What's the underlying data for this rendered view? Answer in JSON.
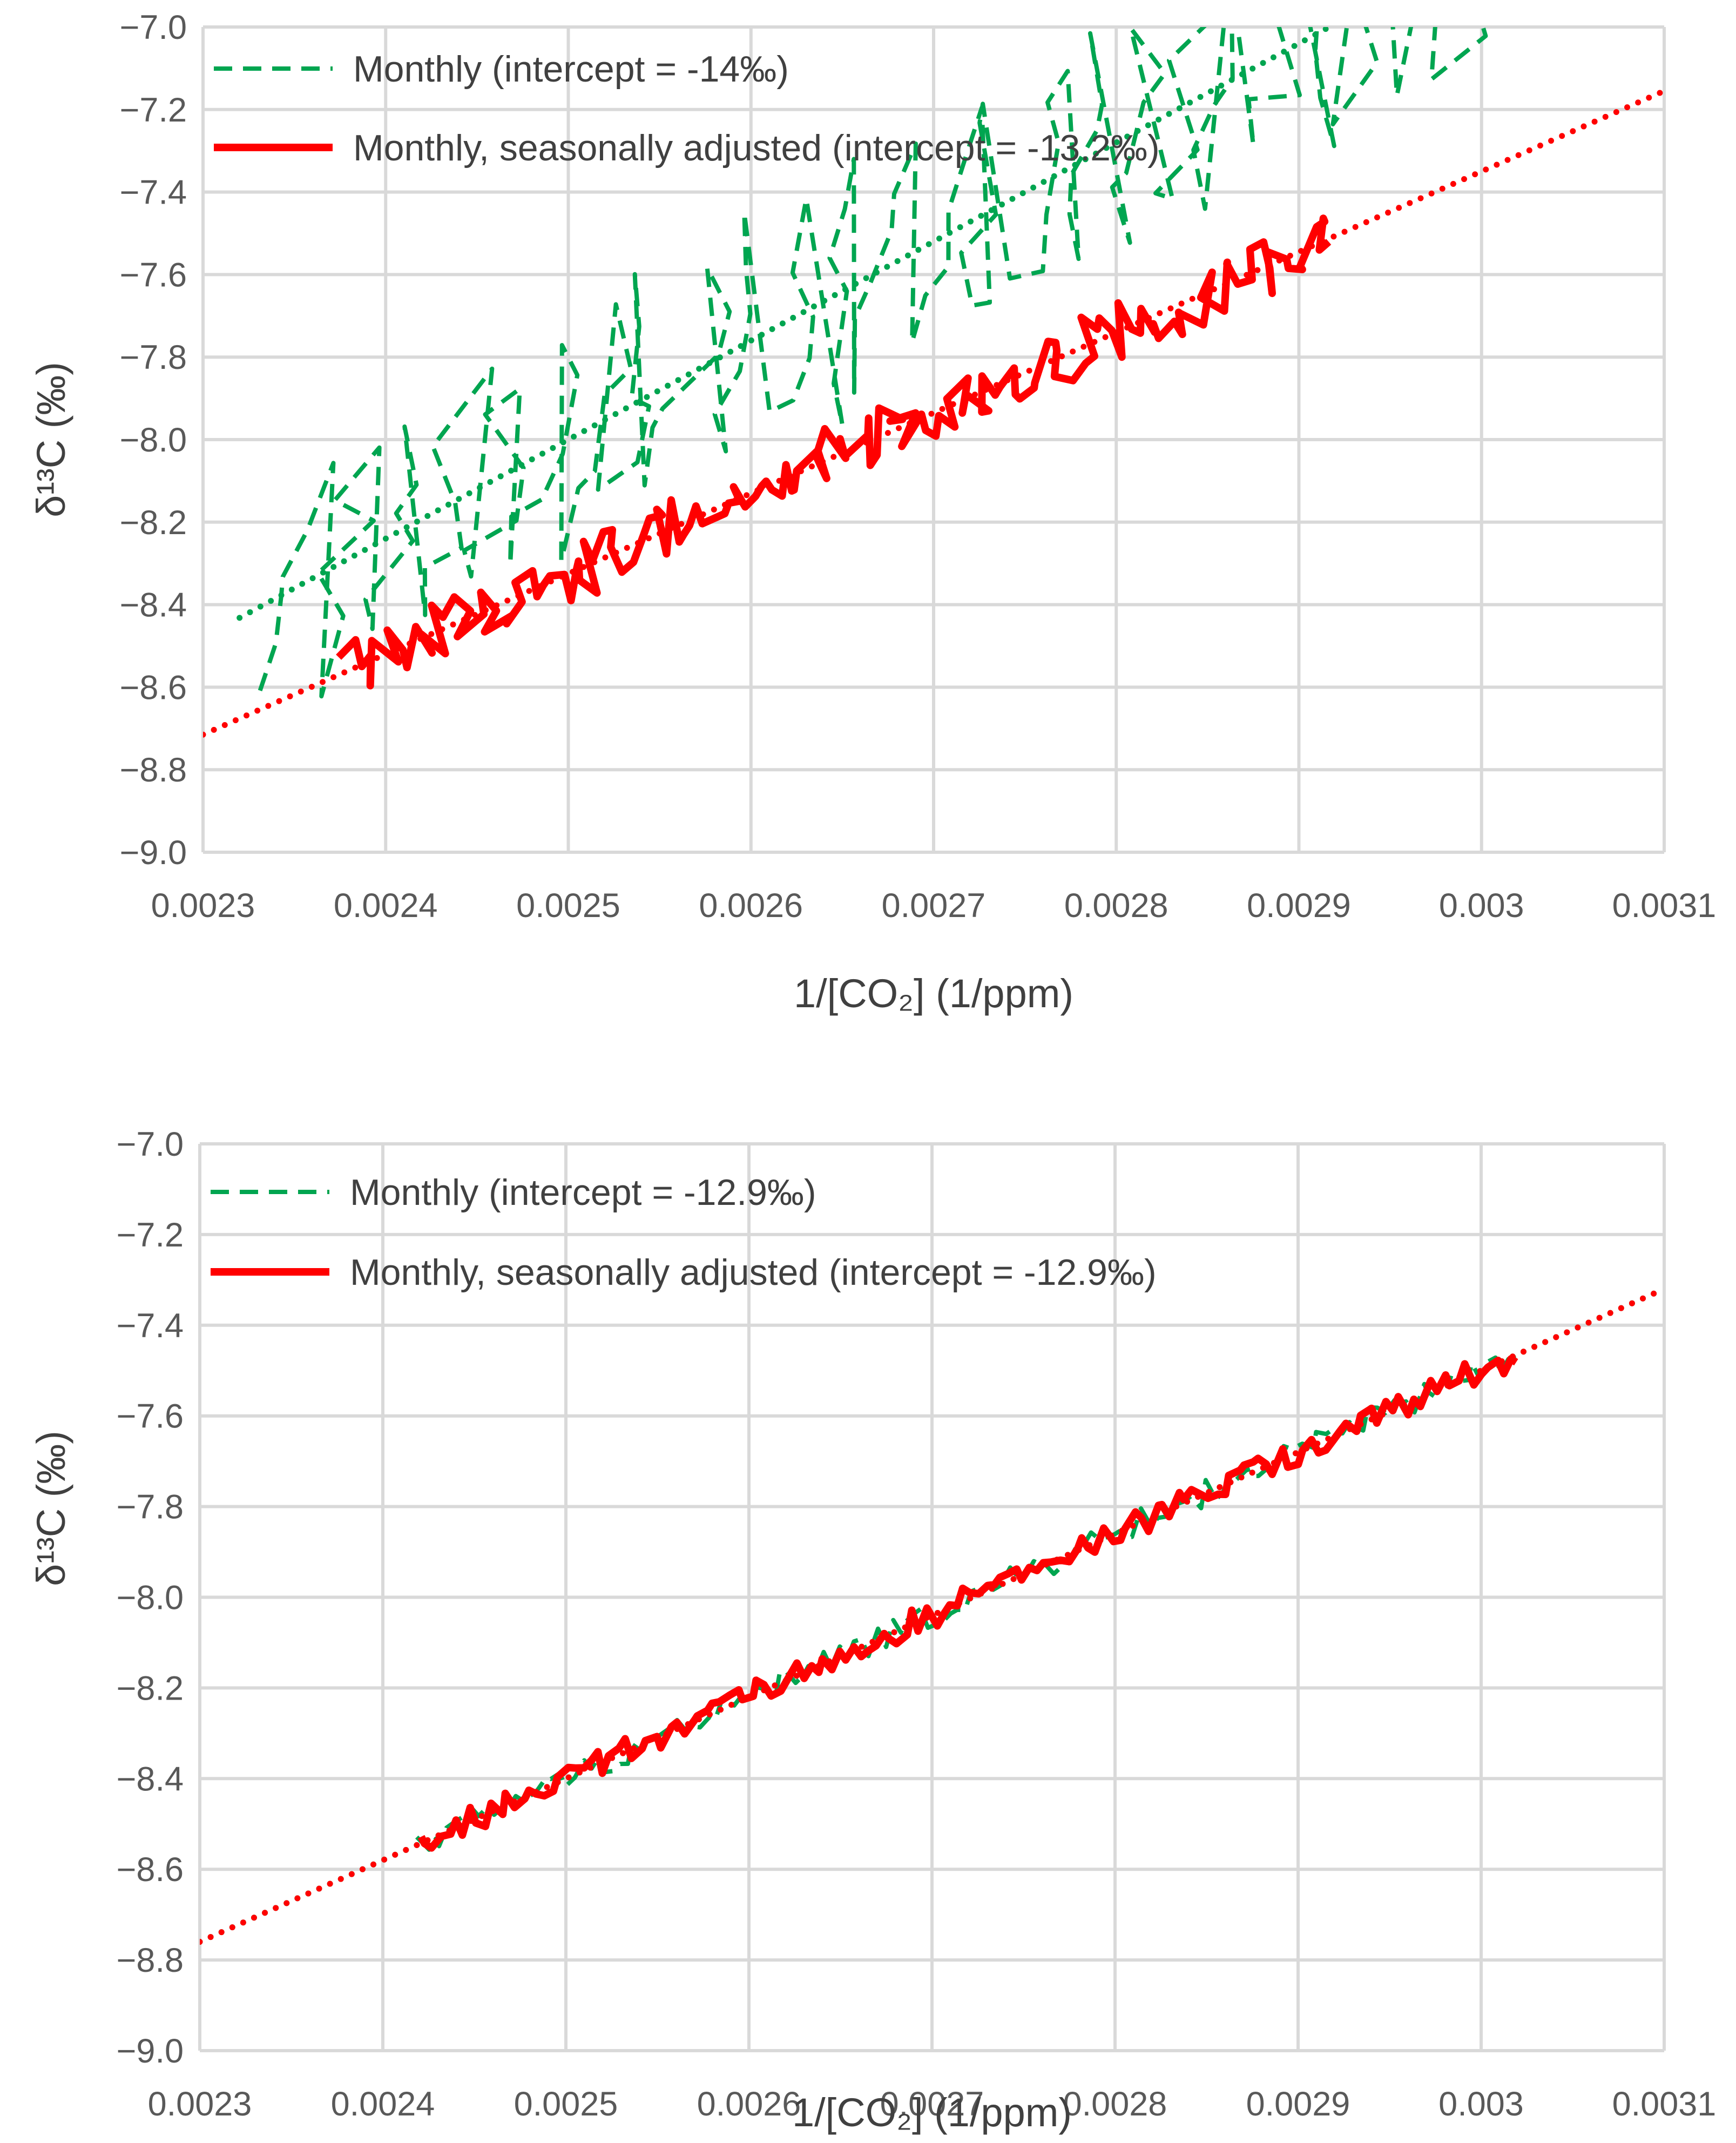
{
  "chart_data": [
    {
      "type": "line",
      "ylabel": "δ¹³C (‰)",
      "xlabel": "1/[CO₂] (1/ppm)",
      "xlim": [
        0.0023,
        0.0031
      ],
      "ylim": [
        -9.0,
        -7.0
      ],
      "xticks": [
        "0.0023",
        "0.0024",
        "0.0025",
        "0.0026",
        "0.0027",
        "0.0028",
        "0.0029",
        "0.003",
        "0.0031"
      ],
      "yticks": [
        "−7.0",
        "−7.2",
        "−7.4",
        "−7.6",
        "−7.8",
        "−8.0",
        "−8.2",
        "−8.4",
        "−8.6",
        "−8.8",
        "−9.0"
      ],
      "legend_position": "top-left",
      "series": [
        {
          "name": "Monthly (intercept = -14‰)",
          "style": "dashed",
          "color": "#00a550",
          "x_range": [
            0.00234,
            0.00301
          ],
          "slope": 2400,
          "intercept": -14.0,
          "noise": 0.25
        },
        {
          "name": "Monthly, seasonally adjusted (intercept = -13.2‰)",
          "style": "solid",
          "color": "#ff0000",
          "x_range": [
            0.00238,
            0.00292
          ],
          "slope": 1950,
          "intercept": -13.2,
          "noise": 0.07
        }
      ],
      "trendlines": [
        {
          "series": "Monthly (intercept = -14‰)",
          "style": "dotted",
          "color": "#00a550",
          "slope": 2400,
          "intercept": -14.0,
          "x_range": [
            0.00232,
            0.0031
          ]
        },
        {
          "series": "Monthly, seasonally adjusted (intercept = -13.2‰)",
          "style": "dotted",
          "color": "#ff0000",
          "slope": 1950,
          "intercept": -13.2,
          "x_range": [
            0.0023,
            0.0031
          ]
        }
      ]
    },
    {
      "type": "line",
      "ylabel": "δ¹³C (‰)",
      "xlabel": "1/[CO₂] (1/ppm)",
      "xlim": [
        0.0023,
        0.0031
      ],
      "ylim": [
        -9.0,
        -7.0
      ],
      "xticks": [
        "0.0023",
        "0.0024",
        "0.0025",
        "0.0026",
        "0.0027",
        "0.0028",
        "0.0029",
        "0.003",
        "0.0031"
      ],
      "yticks": [
        "−7.0",
        "−7.2",
        "−7.4",
        "−7.6",
        "−7.8",
        "−8.0",
        "−8.2",
        "−8.4",
        "−8.6",
        "−8.8",
        "−9.0"
      ],
      "legend_position": "top-left",
      "series": [
        {
          "name": "Monthly (intercept = -12.9‰)",
          "style": "dashed",
          "color": "#00a550",
          "x_range": [
            0.00242,
            0.00302
          ],
          "slope": 1800,
          "intercept": -12.9,
          "noise": 0.03
        },
        {
          "name": "Monthly, seasonally adjusted (intercept = -12.9‰)",
          "style": "solid",
          "color": "#ff0000",
          "x_range": [
            0.00242,
            0.00302
          ],
          "slope": 1800,
          "intercept": -12.9,
          "noise": 0.03
        }
      ],
      "trendlines": [
        {
          "series": "Monthly (intercept = -12.9‰)",
          "style": "dotted",
          "color": "#00a550",
          "slope": 1800,
          "intercept": -12.9,
          "x_range": [
            0.0023,
            0.0031
          ]
        },
        {
          "series": "Monthly, seasonally adjusted (intercept = -12.9‰)",
          "style": "dotted",
          "color": "#ff0000",
          "slope": 1800,
          "intercept": -12.9,
          "x_range": [
            0.0023,
            0.0031
          ]
        }
      ]
    }
  ]
}
